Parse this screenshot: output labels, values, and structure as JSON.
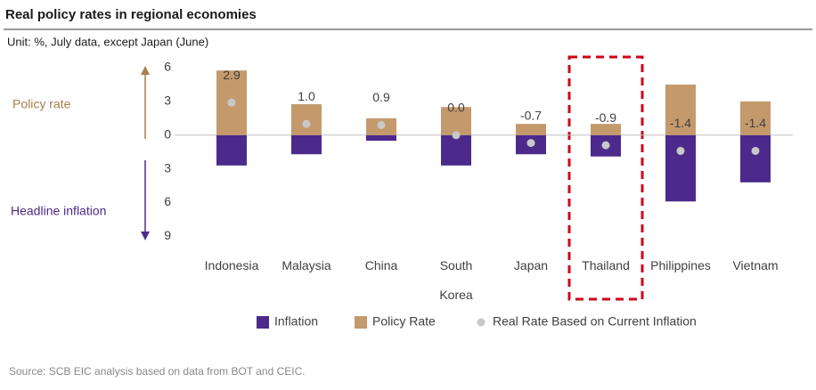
{
  "chart_data": {
    "type": "bar",
    "title": "Real policy rates in regional economies",
    "subtitle": "Unit: %, July data, except Japan (June)",
    "source": "Source: SCB EIC analysis based on data from BOT and CEIC.",
    "annotations": [
      "Policy rate",
      "Headline inflation"
    ],
    "categories": [
      "Indonesia",
      "Malaysia",
      "China",
      "South Korea",
      "Japan",
      "Thailand",
      "Philippines",
      "Vietnam"
    ],
    "series": [
      {
        "name": "Inflation",
        "type": "bar",
        "color": "#4b2a8c",
        "values": [
          -2.7,
          -1.7,
          -0.5,
          -2.7,
          -1.7,
          -1.9,
          -5.9,
          -4.2
        ]
      },
      {
        "name": "Policy Rate",
        "type": "bar",
        "color": "#c49a6c",
        "values": [
          5.75,
          2.75,
          1.5,
          2.5,
          1.0,
          1.0,
          4.5,
          3.0
        ]
      },
      {
        "name": "Real Rate Based on Current Inflation",
        "type": "scatter",
        "color": "#c8c8c8",
        "values": [
          2.9,
          1.0,
          0.9,
          0.0,
          -0.7,
          -0.9,
          -1.4,
          -1.4
        ],
        "value_labels": [
          "2.9",
          "1.0",
          "0.9",
          "0.0",
          "-0.7",
          "-0.9",
          "-1.4",
          "-1.4"
        ]
      }
    ],
    "ylim": [
      -9.5,
      6.5
    ],
    "yticks": [
      6,
      3,
      0,
      {
        "value": -3,
        "label": "3"
      },
      {
        "value": -6,
        "label": "6"
      },
      {
        "value": -9,
        "label": "9"
      }
    ]
  }
}
